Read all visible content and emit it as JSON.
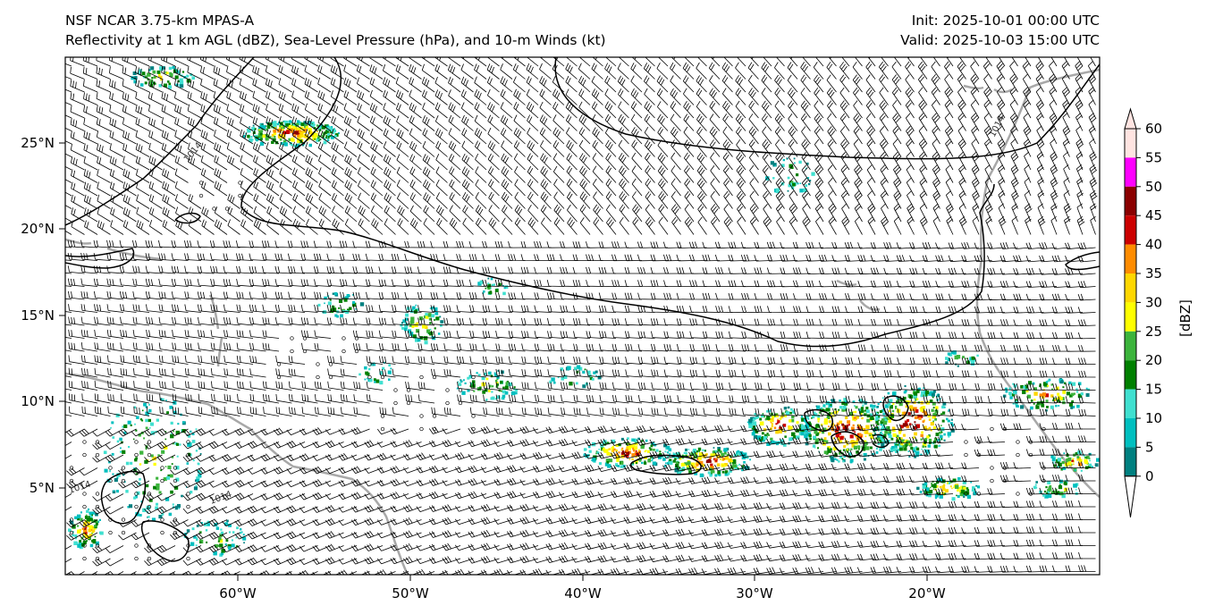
{
  "title": {
    "line1": "NSF NCAR 3.75-km MPAS-A",
    "line2": "Reflectivity at 1 km AGL (dBZ), Sea-Level Pressure (hPa), and 10-m Winds (kt)",
    "init": "Init: 2025-10-01 00:00 UTC",
    "valid": "Valid: 2025-10-03 15:00 UTC"
  },
  "map": {
    "lon_range": [
      -70,
      -10
    ],
    "lat_range": [
      0,
      30
    ],
    "lat_ticks": [
      {
        "value": 25,
        "label": "25°N"
      },
      {
        "value": 20,
        "label": "20°N"
      },
      {
        "value": 15,
        "label": "15°N"
      },
      {
        "value": 10,
        "label": "10°N"
      },
      {
        "value": 5,
        "label": "5°N"
      }
    ],
    "lon_ticks": [
      {
        "value": -60,
        "label": "60°W"
      },
      {
        "value": -50,
        "label": "50°W"
      },
      {
        "value": -40,
        "label": "40°W"
      },
      {
        "value": -30,
        "label": "30°W"
      },
      {
        "value": -20,
        "label": "20°W"
      }
    ],
    "isobar_label": "1014"
  },
  "colorbar": {
    "label": "[dBZ]",
    "levels": [
      0,
      5,
      10,
      15,
      20,
      25,
      30,
      35,
      40,
      45,
      50,
      55,
      60
    ],
    "colors": [
      "#ffffff",
      "#008080",
      "#00bfbf",
      "#40e0d0",
      "#008000",
      "#3cb43c",
      "#ffff00",
      "#ffd700",
      "#ff8c00",
      "#cc0000",
      "#8b0000",
      "#ff00ff",
      "#ffe4e1"
    ],
    "tick_labels": [
      "0",
      "5",
      "10",
      "15",
      "20",
      "25",
      "30",
      "35",
      "40",
      "45",
      "50",
      "55",
      "60"
    ]
  },
  "colors": {
    "land_outline": "#a8a8a8",
    "isobar": "#000000",
    "barb": "#000000"
  }
}
